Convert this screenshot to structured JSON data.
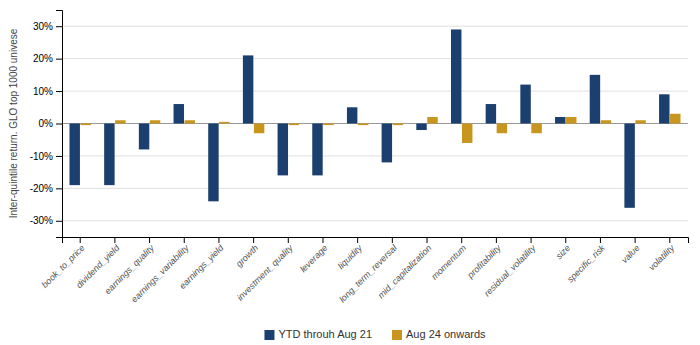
{
  "chart_data": {
    "type": "bar",
    "categories": [
      "book_to_price",
      "dividend_yield",
      "earnings_quality",
      "earnings_variability",
      "earnings_yield",
      "growth",
      "investment_quality",
      "leverage",
      "liquidity",
      "long_term_reversal",
      "mid_capitalization",
      "momentum",
      "profitability",
      "residual_volatility",
      "size",
      "specific_risk",
      "value",
      "volatility"
    ],
    "series": [
      {
        "name": "YTD throuh Aug 21",
        "color": "#1b3f6e",
        "values": [
          -19,
          -19,
          -8,
          6,
          -24,
          21,
          -16,
          -16,
          5,
          -12,
          -2,
          29,
          6,
          12,
          2,
          15,
          -26,
          9
        ]
      },
      {
        "name": "Aug 24 onwards",
        "color": "#c8961e",
        "values": [
          -0.5,
          1,
          1,
          1,
          0.5,
          -3,
          -0.5,
          -0.5,
          -0.5,
          -0.5,
          2,
          -6,
          -3,
          -3,
          2,
          1,
          1,
          3
        ]
      }
    ],
    "ylabel": "Inter-quintile return. GLO top 1000 univese",
    "ylim": [
      -35,
      35
    ],
    "yticks": [
      {
        "value": -30,
        "label": "-30%"
      },
      {
        "value": -20,
        "label": "-20%"
      },
      {
        "value": -10,
        "label": "-10%"
      },
      {
        "value": 0,
        "label": "0%"
      },
      {
        "value": 10,
        "label": "10%"
      },
      {
        "value": 20,
        "label": "20%"
      },
      {
        "value": 30,
        "label": "30%"
      }
    ],
    "grid": true,
    "legend": "bottom"
  }
}
